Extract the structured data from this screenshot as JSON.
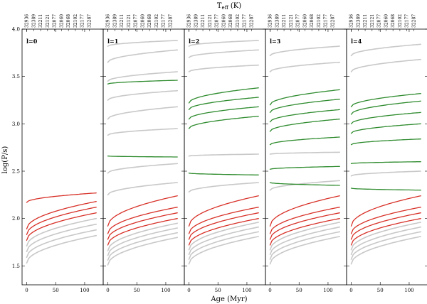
{
  "figure": {
    "top_axis_title": "T_eff (K)",
    "top_axis_title_main": "T",
    "top_axis_title_sub": "eff",
    "top_axis_title_unit": " (K)",
    "xlabel": "Age (Myr)",
    "ylabel": "log(P/s)"
  },
  "colors": {
    "background_tracks": "#c8c8c8",
    "red_tracks": "#d73027",
    "green_tracks": "#2e8b2e"
  },
  "chart_data": {
    "type": "line",
    "shared_y": true,
    "ylim": [
      1.3,
      4.0
    ],
    "yticks": [
      1.5,
      2.0,
      2.5,
      3.0,
      3.5,
      4.0
    ],
    "yticklabels": [
      "1.5",
      "2.0",
      "2.5",
      "3.0",
      "3.5",
      "4.0"
    ],
    "xlim": [
      -8,
      132
    ],
    "xticks": [
      0,
      50,
      100
    ],
    "xticklabels": [
      "0",
      "50",
      "100"
    ],
    "top_axis_teff_labels": [
      "32936",
      "32389",
      "32211",
      "32121",
      "32077",
      "32060",
      "32068",
      "32102",
      "32177",
      "32287"
    ],
    "top_axis_teff_ages": [
      0,
      12,
      24,
      36,
      48,
      60,
      72,
      84,
      96,
      108
    ],
    "panels": [
      {
        "label": "l=0",
        "gray_tracks": [
          {
            "start": 1.53,
            "end": 1.82
          },
          {
            "start": 1.59,
            "end": 1.88
          },
          {
            "start": 1.65,
            "end": 1.94
          },
          {
            "start": 1.71,
            "end": 2.0
          }
        ],
        "red_tracks": [
          {
            "start": 1.77,
            "end": 2.06
          },
          {
            "start": 1.83,
            "end": 2.12
          },
          {
            "start": 1.89,
            "end": 2.18
          },
          {
            "start": 2.17,
            "end": 2.27
          }
        ],
        "green_tracks": []
      },
      {
        "label": "l=1",
        "gray_tracks": [
          {
            "start": 1.51,
            "end": 1.8
          },
          {
            "start": 1.56,
            "end": 1.85
          },
          {
            "start": 1.61,
            "end": 1.9
          },
          {
            "start": 1.66,
            "end": 1.95
          },
          {
            "start": 2.25,
            "end": 2.38
          },
          {
            "start": 2.48,
            "end": 2.58
          },
          {
            "start": 2.88,
            "end": 2.95
          },
          {
            "start": 3.05,
            "end": 3.18
          },
          {
            "start": 3.25,
            "end": 3.35
          },
          {
            "start": 3.45,
            "end": 3.55
          },
          {
            "start": 3.65,
            "end": 3.78
          },
          {
            "start": 3.82,
            "end": 3.88
          }
        ],
        "red_tracks": [
          {
            "start": 1.72,
            "end": 2.0
          },
          {
            "start": 1.78,
            "end": 2.06
          },
          {
            "start": 1.84,
            "end": 2.12
          },
          {
            "start": 1.92,
            "end": 2.24
          }
        ],
        "green_tracks": [
          {
            "start": 2.66,
            "end": 2.65
          },
          {
            "start": 3.42,
            "end": 3.46
          }
        ]
      },
      {
        "label": "l=2",
        "gray_tracks": [
          {
            "start": 1.52,
            "end": 1.81
          },
          {
            "start": 1.57,
            "end": 1.86
          },
          {
            "start": 1.62,
            "end": 1.91
          },
          {
            "start": 1.67,
            "end": 1.96
          },
          {
            "start": 2.28,
            "end": 2.38
          },
          {
            "start": 2.66,
            "end": 2.68
          },
          {
            "start": 3.55,
            "end": 3.62
          },
          {
            "start": 3.7,
            "end": 3.78
          },
          {
            "start": 3.82,
            "end": 3.88
          }
        ],
        "red_tracks": [
          {
            "start": 1.72,
            "end": 2.0
          },
          {
            "start": 1.78,
            "end": 2.06
          },
          {
            "start": 1.84,
            "end": 2.12
          },
          {
            "start": 1.92,
            "end": 2.24
          }
        ],
        "green_tracks": [
          {
            "start": 2.48,
            "end": 2.46
          },
          {
            "start": 2.95,
            "end": 3.08
          },
          {
            "start": 3.05,
            "end": 3.18
          },
          {
            "start": 3.15,
            "end": 3.28
          },
          {
            "start": 3.22,
            "end": 3.38
          }
        ]
      },
      {
        "label": "l=3",
        "gray_tracks": [
          {
            "start": 1.52,
            "end": 1.81
          },
          {
            "start": 1.57,
            "end": 1.86
          },
          {
            "start": 1.62,
            "end": 1.91
          },
          {
            "start": 1.67,
            "end": 1.96
          },
          {
            "start": 2.3,
            "end": 2.4
          },
          {
            "start": 2.68,
            "end": 2.7
          },
          {
            "start": 3.55,
            "end": 3.65
          },
          {
            "start": 3.72,
            "end": 3.82
          }
        ],
        "red_tracks": [
          {
            "start": 1.72,
            "end": 2.0
          },
          {
            "start": 1.78,
            "end": 2.06
          },
          {
            "start": 1.84,
            "end": 2.12
          },
          {
            "start": 1.92,
            "end": 2.24
          }
        ],
        "green_tracks": [
          {
            "start": 2.38,
            "end": 2.35
          },
          {
            "start": 2.52,
            "end": 2.55
          },
          {
            "start": 2.78,
            "end": 2.86
          },
          {
            "start": 2.92,
            "end": 3.05
          },
          {
            "start": 3.02,
            "end": 3.15
          },
          {
            "start": 3.12,
            "end": 3.26
          },
          {
            "start": 3.2,
            "end": 3.36
          }
        ]
      },
      {
        "label": "l=4",
        "gray_tracks": [
          {
            "start": 1.52,
            "end": 1.81
          },
          {
            "start": 1.57,
            "end": 1.86
          },
          {
            "start": 1.62,
            "end": 1.91
          },
          {
            "start": 1.67,
            "end": 1.96
          },
          {
            "start": 2.45,
            "end": 2.5
          },
          {
            "start": 3.55,
            "end": 3.68
          },
          {
            "start": 3.72,
            "end": 3.84
          }
        ],
        "red_tracks": [
          {
            "start": 1.72,
            "end": 2.0
          },
          {
            "start": 1.78,
            "end": 2.06
          },
          {
            "start": 1.84,
            "end": 2.12
          },
          {
            "start": 1.92,
            "end": 2.24
          }
        ],
        "green_tracks": [
          {
            "start": 2.32,
            "end": 2.3
          },
          {
            "start": 2.58,
            "end": 2.6
          },
          {
            "start": 2.78,
            "end": 2.84
          },
          {
            "start": 2.9,
            "end": 3.0
          },
          {
            "start": 3.0,
            "end": 3.12
          },
          {
            "start": 3.1,
            "end": 3.24
          },
          {
            "start": 3.18,
            "end": 3.32
          }
        ]
      }
    ]
  }
}
